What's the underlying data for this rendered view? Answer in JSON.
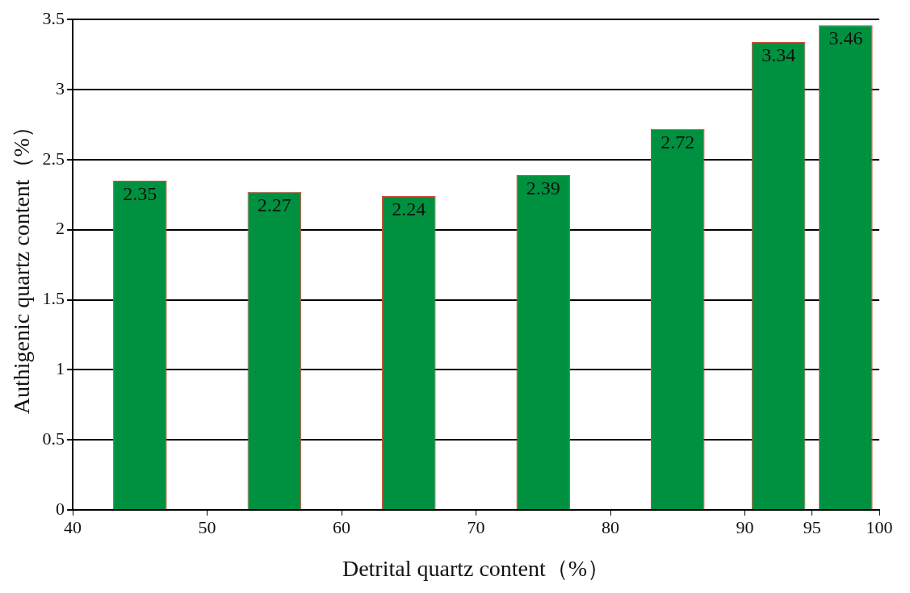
{
  "chart_data": {
    "type": "histogram",
    "xlabel": "Detrital quartz content（%）",
    "ylabel": "Authigenic quartz content（%）",
    "bins": [
      40,
      50,
      60,
      70,
      80,
      90,
      95,
      100
    ],
    "values": [
      2.35,
      2.27,
      2.24,
      2.39,
      2.72,
      3.34,
      3.46
    ],
    "color": "#009140",
    "xlim": [
      40,
      100
    ],
    "xticks": [
      40,
      50,
      60,
      70,
      80,
      90,
      95,
      100
    ],
    "ylim": [
      0,
      3.5
    ],
    "yticks": [
      0,
      0.5,
      1,
      1.5,
      2,
      2.5,
      3,
      3.5
    ],
    "grid": "y",
    "data_labels": true
  }
}
